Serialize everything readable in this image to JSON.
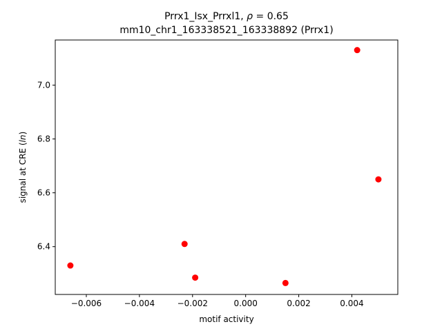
{
  "chart_data": {
    "type": "scatter",
    "title_line1_prefix": "Prrx1_Isx_Prrxl1, ",
    "title_line1_rho": "ρ",
    "title_line1_suffix": " = 0.65",
    "title_line2": "mm10_chr1_163338521_163338892 (Prrx1)",
    "xlabel": "motif activity",
    "ylabel_prefix": "signal at CRE (",
    "ylabel_italic": "ln",
    "ylabel_suffix": ")",
    "xlim": [
      -0.00717,
      0.00573
    ],
    "ylim": [
      6.2225,
      7.1675
    ],
    "xticks": [
      -0.006,
      -0.004,
      -0.002,
      0.0,
      0.002,
      0.004
    ],
    "xtick_labels": [
      "−0.006",
      "−0.004",
      "−0.002",
      "0.000",
      "0.002",
      "0.004"
    ],
    "yticks": [
      6.4,
      6.6,
      6.8,
      7.0
    ],
    "ytick_labels": [
      "6.4",
      "6.6",
      "6.8",
      "7.0"
    ],
    "grid": false,
    "marker_color": "#ff0000",
    "points": [
      {
        "x": -0.0066,
        "y": 6.33
      },
      {
        "x": -0.0023,
        "y": 6.41
      },
      {
        "x": -0.0019,
        "y": 6.285
      },
      {
        "x": 0.0015,
        "y": 6.265
      },
      {
        "x": 0.0042,
        "y": 7.13
      },
      {
        "x": 0.005,
        "y": 6.65
      }
    ]
  }
}
